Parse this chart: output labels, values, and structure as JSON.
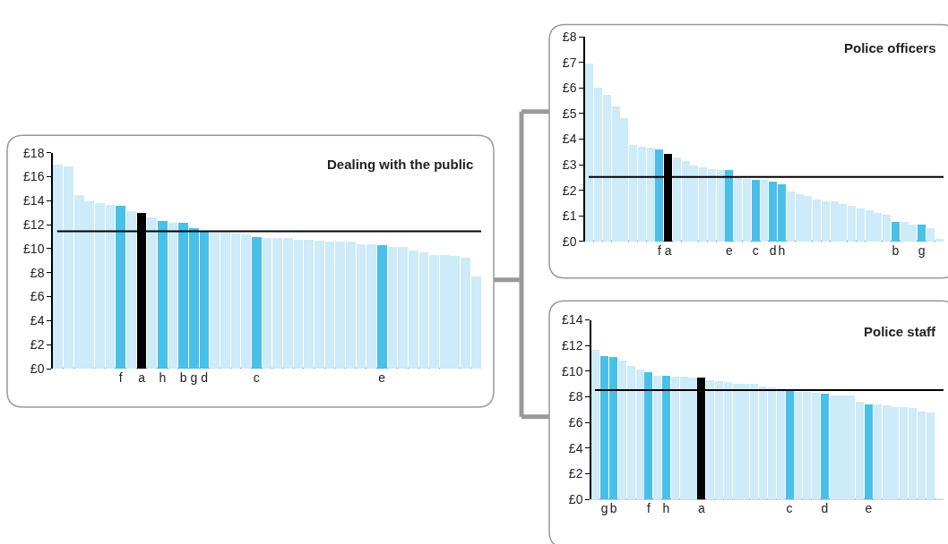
{
  "chart_data": [
    {
      "type": "bar",
      "title": "Dealing with the public",
      "categories": [
        null,
        null,
        null,
        null,
        null,
        null,
        "f",
        null,
        "a",
        null,
        "h",
        null,
        "b",
        "g",
        "d",
        null,
        null,
        null,
        null,
        "c",
        null,
        null,
        null,
        null,
        null,
        null,
        null,
        null,
        null,
        null,
        null,
        "e",
        null,
        null,
        null,
        null,
        null,
        null,
        null,
        null,
        null
      ],
      "values": [
        17.0,
        16.9,
        14.5,
        14.0,
        13.8,
        13.7,
        13.6,
        13.15,
        13.0,
        12.65,
        12.35,
        12.15,
        12.15,
        11.75,
        11.45,
        11.4,
        11.35,
        11.3,
        11.2,
        11.0,
        10.9,
        10.9,
        10.9,
        10.8,
        10.8,
        10.7,
        10.6,
        10.6,
        10.6,
        10.4,
        10.4,
        10.3,
        10.2,
        10.2,
        9.9,
        9.7,
        9.5,
        9.5,
        9.4,
        9.3,
        7.75
      ],
      "colors": [
        "#cdebf8",
        "#cdebf8",
        "#cdebf8",
        "#cdebf8",
        "#cdebf8",
        "#cdebf8",
        "#49bfe9",
        "#cdebf8",
        "#000000",
        "#cdebf8",
        "#49bfe9",
        "#cdebf8",
        "#49bfe9",
        "#49bfe9",
        "#49bfe9",
        "#cdebf8",
        "#cdebf8",
        "#cdebf8",
        "#cdebf8",
        "#49bfe9",
        "#cdebf8",
        "#cdebf8",
        "#cdebf8",
        "#cdebf8",
        "#cdebf8",
        "#cdebf8",
        "#cdebf8",
        "#cdebf8",
        "#cdebf8",
        "#cdebf8",
        "#cdebf8",
        "#49bfe9",
        "#cdebf8",
        "#cdebf8",
        "#cdebf8",
        "#cdebf8",
        "#cdebf8",
        "#cdebf8",
        "#cdebf8",
        "#cdebf8",
        "#cdebf8"
      ],
      "ylim": [
        0,
        18
      ],
      "yticks": [
        {
          "value": 0,
          "label": "£0"
        },
        {
          "value": 2,
          "label": "£2"
        },
        {
          "value": 4,
          "label": "£4"
        },
        {
          "value": 6,
          "label": "£6"
        },
        {
          "value": 8,
          "label": "£8"
        },
        {
          "value": 10,
          "label": "£10"
        },
        {
          "value": 12,
          "label": "£12"
        },
        {
          "value": 14,
          "label": "£14"
        },
        {
          "value": 16,
          "label": "£16"
        },
        {
          "value": 18,
          "label": "£18"
        }
      ],
      "ref_lines": [
        {
          "axis": "y",
          "value": 11.45,
          "color": "#000000"
        }
      ]
    },
    {
      "type": "bar",
      "title": "Police officers",
      "categories": [
        null,
        null,
        null,
        null,
        null,
        null,
        null,
        null,
        "f",
        "a",
        null,
        null,
        null,
        null,
        null,
        null,
        "e",
        null,
        null,
        "c",
        null,
        "d",
        "h",
        null,
        null,
        null,
        null,
        null,
        null,
        null,
        null,
        null,
        null,
        null,
        null,
        "b",
        null,
        null,
        "g",
        null,
        null
      ],
      "values": [
        6.95,
        6.0,
        5.73,
        5.28,
        4.83,
        3.78,
        3.69,
        3.65,
        3.6,
        3.41,
        3.29,
        3.15,
        2.96,
        2.88,
        2.84,
        2.79,
        2.79,
        2.47,
        2.44,
        2.41,
        2.41,
        2.33,
        2.24,
        1.96,
        1.84,
        1.79,
        1.65,
        1.56,
        1.56,
        1.47,
        1.38,
        1.29,
        1.2,
        1.11,
        1.05,
        0.75,
        0.75,
        0.66,
        0.66,
        0.52,
        0.11
      ],
      "colors": [
        "#cdebf8",
        "#cdebf8",
        "#cdebf8",
        "#cdebf8",
        "#cdebf8",
        "#cdebf8",
        "#cdebf8",
        "#cdebf8",
        "#49bfe9",
        "#000000",
        "#cdebf8",
        "#cdebf8",
        "#cdebf8",
        "#cdebf8",
        "#cdebf8",
        "#cdebf8",
        "#49bfe9",
        "#cdebf8",
        "#cdebf8",
        "#49bfe9",
        "#cdebf8",
        "#49bfe9",
        "#49bfe9",
        "#cdebf8",
        "#cdebf8",
        "#cdebf8",
        "#cdebf8",
        "#cdebf8",
        "#cdebf8",
        "#cdebf8",
        "#cdebf8",
        "#cdebf8",
        "#cdebf8",
        "#cdebf8",
        "#cdebf8",
        "#49bfe9",
        "#cdebf8",
        "#cdebf8",
        "#49bfe9",
        "#cdebf8",
        "#cdebf8"
      ],
      "ylim": [
        0,
        8
      ],
      "yticks": [
        {
          "value": 0,
          "label": "£0"
        },
        {
          "value": 1,
          "label": "£1"
        },
        {
          "value": 2,
          "label": "£2"
        },
        {
          "value": 3,
          "label": "£3"
        },
        {
          "value": 4,
          "label": "£4"
        },
        {
          "value": 5,
          "label": "£5"
        },
        {
          "value": 6,
          "label": "£6"
        },
        {
          "value": 7,
          "label": "£7"
        },
        {
          "value": 8,
          "label": "£8"
        }
      ],
      "ref_lines": [
        {
          "axis": "y",
          "value": 2.52,
          "color": "#000000"
        }
      ]
    },
    {
      "type": "bar",
      "title": "Police staff",
      "categories": [
        null,
        "g",
        "b",
        null,
        null,
        null,
        "f",
        null,
        "h",
        null,
        null,
        null,
        "a",
        null,
        null,
        null,
        null,
        null,
        null,
        null,
        null,
        null,
        "c",
        null,
        null,
        null,
        "d",
        null,
        null,
        null,
        null,
        "e",
        null,
        null,
        null,
        null,
        null,
        null,
        null,
        null
      ],
      "values": [
        11.68,
        11.23,
        11.14,
        10.87,
        10.41,
        10.14,
        9.96,
        9.69,
        9.69,
        9.6,
        9.6,
        9.5,
        9.5,
        9.33,
        9.24,
        9.15,
        9.06,
        9.06,
        9.06,
        8.86,
        8.77,
        8.68,
        8.61,
        8.43,
        8.43,
        8.34,
        8.25,
        8.16,
        8.16,
        8.16,
        7.62,
        7.44,
        7.44,
        7.35,
        7.26,
        7.26,
        7.17,
        6.9,
        6.81,
        0.1
      ],
      "colors": [
        "#cdebf8",
        "#49bfe9",
        "#49bfe9",
        "#cdebf8",
        "#cdebf8",
        "#cdebf8",
        "#49bfe9",
        "#cdebf8",
        "#49bfe9",
        "#cdebf8",
        "#cdebf8",
        "#cdebf8",
        "#000000",
        "#cdebf8",
        "#cdebf8",
        "#cdebf8",
        "#cdebf8",
        "#cdebf8",
        "#cdebf8",
        "#cdebf8",
        "#cdebf8",
        "#cdebf8",
        "#49bfe9",
        "#cdebf8",
        "#cdebf8",
        "#cdebf8",
        "#49bfe9",
        "#cdebf8",
        "#cdebf8",
        "#cdebf8",
        "#cdebf8",
        "#49bfe9",
        "#cdebf8",
        "#cdebf8",
        "#cdebf8",
        "#cdebf8",
        "#cdebf8",
        "#cdebf8",
        "#cdebf8",
        "#cdebf8"
      ],
      "ylim": [
        0,
        14
      ],
      "yticks": [
        {
          "value": 0,
          "label": "£0"
        },
        {
          "value": 2,
          "label": "£2"
        },
        {
          "value": 4,
          "label": "£4"
        },
        {
          "value": 6,
          "label": "£6"
        },
        {
          "value": 8,
          "label": "£8"
        },
        {
          "value": 10,
          "label": "£10"
        },
        {
          "value": 12,
          "label": "£12"
        },
        {
          "value": 14,
          "label": "£14"
        }
      ],
      "ref_lines": [
        {
          "axis": "y",
          "value": 8.52,
          "color": "#000000"
        }
      ]
    }
  ]
}
